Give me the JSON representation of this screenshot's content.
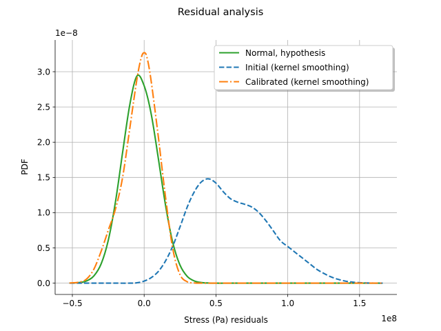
{
  "chart_data": {
    "type": "line",
    "title": "Residual analysis",
    "xlabel": "Stress (Pa) residuals",
    "ylabel": "PDF",
    "x_offset_label": "1e8",
    "y_offset_label": "1e−8",
    "xlim": [
      -0.62,
      1.76
    ],
    "ylim": [
      -0.16,
      3.45
    ],
    "xticks": [
      -0.5,
      0.0,
      0.5,
      1.0,
      1.5
    ],
    "xtick_labels": [
      "−0.5",
      "0.0",
      "0.5",
      "1.0",
      "1.5"
    ],
    "yticks": [
      0.0,
      0.5,
      1.0,
      1.5,
      2.0,
      2.5,
      3.0
    ],
    "ytick_labels": [
      "0.0",
      "0.5",
      "1.0",
      "1.5",
      "2.0",
      "2.5",
      "3.0"
    ],
    "grid": true,
    "legend_position": "upper right",
    "series": [
      {
        "name": "Normal, hypothesis",
        "color": "#2ca02c",
        "style": "solid",
        "x": [
          -0.52,
          -0.45,
          -0.4,
          -0.35,
          -0.3,
          -0.25,
          -0.2,
          -0.15,
          -0.1,
          -0.05,
          0.0,
          0.05,
          0.1,
          0.15,
          0.2,
          0.25,
          0.3,
          0.35,
          0.4,
          0.45,
          0.5,
          0.6,
          0.8,
          1.0,
          1.2,
          1.4,
          1.66
        ],
        "y": [
          0.001,
          0.009,
          0.033,
          0.103,
          0.272,
          0.607,
          1.151,
          1.853,
          2.533,
          2.94,
          2.8,
          2.39,
          1.75,
          1.09,
          0.57,
          0.255,
          0.096,
          0.031,
          0.008,
          0.002,
          0.0,
          0.0,
          0.0,
          0.0,
          0.0,
          0.0,
          0.0
        ]
      },
      {
        "name": "Initial (kernel smoothing)",
        "color": "#1f77b4",
        "style": "dashed",
        "x": [
          -0.52,
          -0.4,
          -0.3,
          -0.2,
          -0.1,
          -0.05,
          0.0,
          0.05,
          0.1,
          0.15,
          0.2,
          0.25,
          0.3,
          0.35,
          0.4,
          0.45,
          0.5,
          0.55,
          0.6,
          0.65,
          0.7,
          0.75,
          0.8,
          0.85,
          0.9,
          0.95,
          1.0,
          1.05,
          1.1,
          1.15,
          1.2,
          1.25,
          1.3,
          1.35,
          1.4,
          1.45,
          1.5,
          1.55,
          1.6,
          1.66
        ],
        "y": [
          0.0,
          0.0,
          0.0,
          0.0,
          0.0,
          0.005,
          0.03,
          0.08,
          0.17,
          0.32,
          0.53,
          0.8,
          1.08,
          1.3,
          1.44,
          1.48,
          1.42,
          1.3,
          1.2,
          1.15,
          1.12,
          1.08,
          1.0,
          0.88,
          0.74,
          0.6,
          0.52,
          0.44,
          0.36,
          0.28,
          0.2,
          0.14,
          0.09,
          0.055,
          0.03,
          0.015,
          0.007,
          0.003,
          0.001,
          0.0
        ]
      },
      {
        "name": "Calibrated (kernel smoothing)",
        "color": "#ff7f0e",
        "style": "dashdot",
        "x": [
          -0.52,
          -0.45,
          -0.4,
          -0.35,
          -0.3,
          -0.25,
          -0.2,
          -0.15,
          -0.1,
          -0.05,
          -0.02,
          0.0,
          0.02,
          0.05,
          0.1,
          0.15,
          0.2,
          0.25,
          0.3,
          0.35,
          0.4,
          0.5,
          0.7,
          1.0,
          1.3,
          1.66
        ],
        "y": [
          0.002,
          0.015,
          0.06,
          0.2,
          0.45,
          0.75,
          1.05,
          1.5,
          2.2,
          2.9,
          3.2,
          3.27,
          3.2,
          2.85,
          2.05,
          1.2,
          0.48,
          0.12,
          0.02,
          0.003,
          0.0,
          0.0,
          0.0,
          0.0,
          0.0,
          0.0
        ]
      }
    ]
  }
}
